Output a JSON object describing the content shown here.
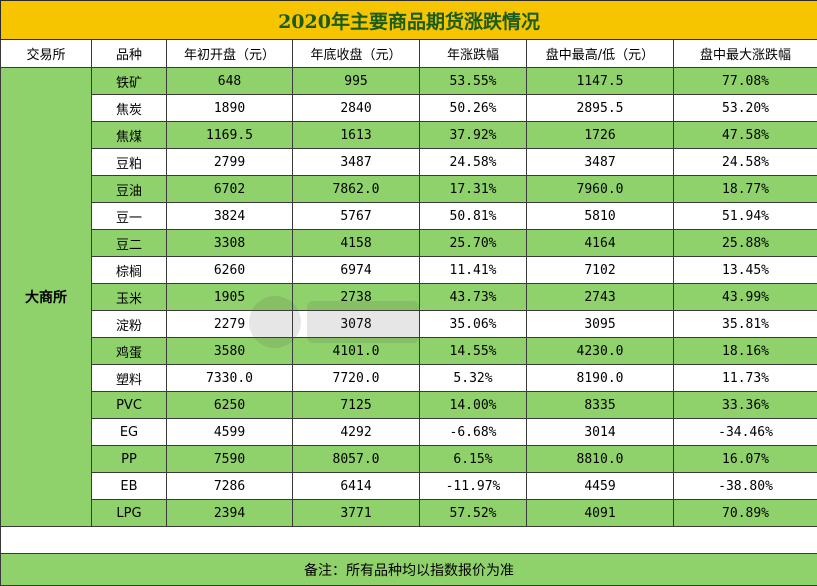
{
  "title": "2020年主要商品期货涨跌情况",
  "headers": [
    "交易所",
    "品种",
    "年初开盘（元）",
    "年底收盘（元）",
    "年涨跌幅",
    "盘中最高/低（元）",
    "盘中最大涨跌幅"
  ],
  "exchange": "大商所",
  "rows": [
    [
      "铁矿",
      "648",
      "995",
      "53.55%",
      "1147.5",
      "77.08%"
    ],
    [
      "焦炭",
      "1890",
      "2840",
      "50.26%",
      "2895.5",
      "53.20%"
    ],
    [
      "焦煤",
      "1169.5",
      "1613",
      "37.92%",
      "1726",
      "47.58%"
    ],
    [
      "豆粕",
      "2799",
      "3487",
      "24.58%",
      "3487",
      "24.58%"
    ],
    [
      "豆油",
      "6702",
      "7862.0",
      "17.31%",
      "7960.0",
      "18.77%"
    ],
    [
      "豆一",
      "3824",
      "5767",
      "50.81%",
      "5810",
      "51.94%"
    ],
    [
      "豆二",
      "3308",
      "4158",
      "25.70%",
      "4164",
      "25.88%"
    ],
    [
      "棕榈",
      "6260",
      "6974",
      "11.41%",
      "7102",
      "13.45%"
    ],
    [
      "玉米",
      "1905",
      "2738",
      "43.73%",
      "2743",
      "43.99%"
    ],
    [
      "淀粉",
      "2279",
      "3078",
      "35.06%",
      "3095",
      "35.81%"
    ],
    [
      "鸡蛋",
      "3580",
      "4101.0",
      "14.55%",
      "4230.0",
      "18.16%"
    ],
    [
      "塑料",
      "7330.0",
      "7720.0",
      "5.32%",
      "8190.0",
      "11.73%"
    ],
    [
      "PVC",
      "6250",
      "7125",
      "14.00%",
      "8335",
      "33.36%"
    ],
    [
      "EG",
      "4599",
      "4292",
      "-6.68%",
      "3014",
      "-34.46%"
    ],
    [
      "PP",
      "7590",
      "8057.0",
      "6.15%",
      "8810.0",
      "16.07%"
    ],
    [
      "EB",
      "7286",
      "6414",
      "-11.97%",
      "4459",
      "-38.80%"
    ],
    [
      "LPG",
      "2394",
      "3771",
      "57.52%",
      "4091",
      "70.89%"
    ]
  ],
  "note": "备注：所有品种均以指数报价为准",
  "colors": {
    "title_bg": "#f7c400",
    "title_text": "#1a5c1a",
    "row_green": "#8fd16a"
  },
  "watermark_icon": "watermark-logo-icon"
}
